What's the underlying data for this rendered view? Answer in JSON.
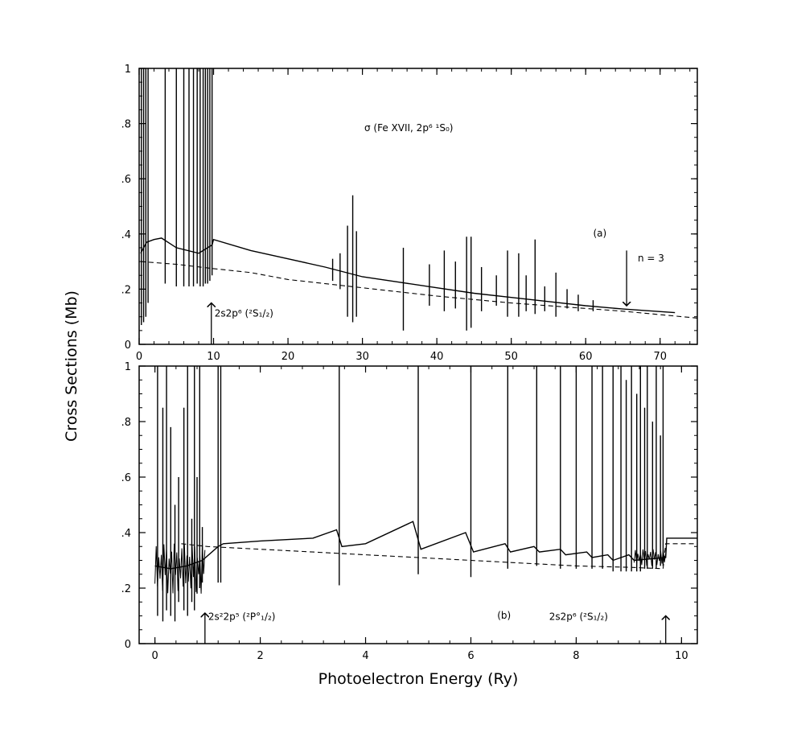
{
  "ylabel": "Cross Sections (Mb)",
  "xlabel": "Photoelectron Energy (Ry)",
  "chart_data": [
    {
      "type": "line",
      "panel": "(a)",
      "title": "σ (Fe XVII, 2p⁶ ¹S₀)",
      "xlim": [
        0,
        75
      ],
      "ylim": [
        0,
        1
      ],
      "x_ticks": [
        "0",
        "10",
        "20",
        "30",
        "40",
        "50",
        "60",
        "70"
      ],
      "y_ticks": [
        "0",
        ".2",
        ".4",
        ".6",
        ".8",
        "1"
      ],
      "series": [
        {
          "style": "solid",
          "x": [
            0.2,
            1,
            2,
            3,
            5,
            8,
            9.8,
            10,
            15,
            20,
            25,
            30,
            35,
            40,
            45,
            50,
            55,
            60,
            65,
            72
          ],
          "y": [
            0.33,
            0.37,
            0.38,
            0.385,
            0.35,
            0.33,
            0.36,
            0.38,
            0.34,
            0.31,
            0.28,
            0.245,
            0.225,
            0.205,
            0.185,
            0.17,
            0.155,
            0.14,
            0.128,
            0.115
          ]
        },
        {
          "style": "dashed",
          "x": [
            0.2,
            5,
            9.8,
            15,
            20,
            30,
            40,
            50,
            60,
            65,
            75
          ],
          "y": [
            0.3,
            0.29,
            0.275,
            0.26,
            0.235,
            0.205,
            0.175,
            0.15,
            0.13,
            0.12,
            0.095
          ]
        }
      ],
      "spikes": [
        {
          "x": 0.3,
          "lo": 0.07,
          "hi": 1.0
        },
        {
          "x": 0.6,
          "lo": 0.08,
          "hi": 1.0
        },
        {
          "x": 0.9,
          "lo": 0.1,
          "hi": 1.0
        },
        {
          "x": 1.2,
          "lo": 0.15,
          "hi": 1.0
        },
        {
          "x": 3.5,
          "lo": 0.22,
          "hi": 1.0
        },
        {
          "x": 5.0,
          "lo": 0.21,
          "hi": 1.0
        },
        {
          "x": 6.0,
          "lo": 0.21,
          "hi": 1.0
        },
        {
          "x": 6.7,
          "lo": 0.21,
          "hi": 1.0
        },
        {
          "x": 7.3,
          "lo": 0.21,
          "hi": 1.0
        },
        {
          "x": 7.8,
          "lo": 0.22,
          "hi": 1.0
        },
        {
          "x": 8.2,
          "lo": 0.21,
          "hi": 1.0
        },
        {
          "x": 8.6,
          "lo": 0.21,
          "hi": 1.0
        },
        {
          "x": 8.9,
          "lo": 0.22,
          "hi": 1.0
        },
        {
          "x": 9.2,
          "lo": 0.22,
          "hi": 1.0
        },
        {
          "x": 9.5,
          "lo": 0.23,
          "hi": 1.0
        },
        {
          "x": 9.8,
          "lo": 0.25,
          "hi": 1.0
        },
        {
          "x": 26,
          "lo": 0.23,
          "hi": 0.31
        },
        {
          "x": 27,
          "lo": 0.2,
          "hi": 0.33
        },
        {
          "x": 28,
          "lo": 0.1,
          "hi": 0.43
        },
        {
          "x": 28.7,
          "lo": 0.08,
          "hi": 0.54
        },
        {
          "x": 29.2,
          "lo": 0.1,
          "hi": 0.41
        },
        {
          "x": 35.5,
          "lo": 0.05,
          "hi": 0.35
        },
        {
          "x": 39,
          "lo": 0.14,
          "hi": 0.29
        },
        {
          "x": 41,
          "lo": 0.12,
          "hi": 0.34
        },
        {
          "x": 42.5,
          "lo": 0.13,
          "hi": 0.3
        },
        {
          "x": 44,
          "lo": 0.05,
          "hi": 0.39
        },
        {
          "x": 44.6,
          "lo": 0.06,
          "hi": 0.39
        },
        {
          "x": 46,
          "lo": 0.12,
          "hi": 0.28
        },
        {
          "x": 48,
          "lo": 0.14,
          "hi": 0.25
        },
        {
          "x": 49.5,
          "lo": 0.1,
          "hi": 0.34
        },
        {
          "x": 51,
          "lo": 0.1,
          "hi": 0.33
        },
        {
          "x": 52,
          "lo": 0.12,
          "hi": 0.25
        },
        {
          "x": 53.2,
          "lo": 0.11,
          "hi": 0.38
        },
        {
          "x": 54.5,
          "lo": 0.12,
          "hi": 0.21
        },
        {
          "x": 56,
          "lo": 0.1,
          "hi": 0.26
        },
        {
          "x": 57.5,
          "lo": 0.13,
          "hi": 0.2
        },
        {
          "x": 59,
          "lo": 0.12,
          "hi": 0.18
        },
        {
          "x": 61,
          "lo": 0.12,
          "hi": 0.16
        }
      ],
      "annotations": [
        {
          "text": "(a)",
          "x": 61,
          "y": 0.39
        },
        {
          "text": "n = 3",
          "x": 67,
          "y": 0.3
        }
      ],
      "arrows": [
        {
          "x": 65.5,
          "from": 0.34,
          "to": 0.14,
          "dir": "down"
        },
        {
          "x": 9.7,
          "from": 0,
          "to": 0.15,
          "dir": "up",
          "label": "2s2p⁶ (²S₁/₂)"
        }
      ]
    },
    {
      "type": "line",
      "panel": "(b)",
      "xlim": [
        -0.3,
        10.3
      ],
      "ylim": [
        0,
        1
      ],
      "x_ticks": [
        "0",
        "2",
        "4",
        "6",
        "8",
        "10"
      ],
      "y_ticks": [
        "0",
        ".2",
        ".4",
        ".6",
        ".8",
        "1"
      ],
      "series": [
        {
          "style": "solid",
          "x": [
            0,
            0.3,
            0.6,
            0.9,
            1.2,
            1.3,
            2,
            3,
            3.45,
            3.55,
            4,
            4.9,
            5.05,
            5.9,
            6.05,
            6.65,
            6.75,
            7.2,
            7.3,
            7.7,
            7.8,
            8.2,
            8.3,
            8.6,
            8.7,
            9.0,
            9.1,
            9.7,
            9.72,
            10.3
          ],
          "y": [
            0.28,
            0.27,
            0.28,
            0.3,
            0.35,
            0.36,
            0.37,
            0.38,
            0.41,
            0.35,
            0.36,
            0.44,
            0.34,
            0.4,
            0.33,
            0.36,
            0.33,
            0.35,
            0.33,
            0.34,
            0.32,
            0.33,
            0.31,
            0.32,
            0.3,
            0.32,
            0.3,
            0.31,
            0.38,
            0.38
          ]
        },
        {
          "style": "dashed",
          "x": [
            0.5,
            1,
            2,
            3,
            4,
            5,
            6,
            7,
            8,
            9,
            9.65,
            9.7,
            10.3
          ],
          "y": [
            0.36,
            0.35,
            0.34,
            0.33,
            0.32,
            0.31,
            0.3,
            0.29,
            0.28,
            0.275,
            0.27,
            0.36,
            0.36
          ]
        }
      ],
      "spikes": [
        {
          "x": 0.05,
          "lo": 0.1,
          "hi": 1.0
        },
        {
          "x": 0.15,
          "lo": 0.08,
          "hi": 0.85
        },
        {
          "x": 0.22,
          "lo": 0.12,
          "hi": 1.0
        },
        {
          "x": 0.3,
          "lo": 0.1,
          "hi": 0.78
        },
        {
          "x": 0.38,
          "lo": 0.08,
          "hi": 0.5
        },
        {
          "x": 0.45,
          "lo": 0.15,
          "hi": 0.6
        },
        {
          "x": 0.55,
          "lo": 0.12,
          "hi": 0.85
        },
        {
          "x": 0.62,
          "lo": 0.1,
          "hi": 1.0
        },
        {
          "x": 0.7,
          "lo": 0.15,
          "hi": 0.45
        },
        {
          "x": 0.75,
          "lo": 0.12,
          "hi": 1.0
        },
        {
          "x": 0.8,
          "lo": 0.18,
          "hi": 0.6
        },
        {
          "x": 0.85,
          "lo": 0.2,
          "hi": 1.0
        },
        {
          "x": 0.9,
          "lo": 0.22,
          "hi": 0.42
        },
        {
          "x": 1.2,
          "lo": 0.22,
          "hi": 1.0
        },
        {
          "x": 1.25,
          "lo": 0.22,
          "hi": 1.0
        },
        {
          "x": 3.5,
          "lo": 0.21,
          "hi": 1.0
        },
        {
          "x": 5.0,
          "lo": 0.25,
          "hi": 1.0
        },
        {
          "x": 6.0,
          "lo": 0.24,
          "hi": 1.0
        },
        {
          "x": 6.7,
          "lo": 0.27,
          "hi": 1.0
        },
        {
          "x": 7.25,
          "lo": 0.28,
          "hi": 1.0
        },
        {
          "x": 7.7,
          "lo": 0.27,
          "hi": 1.0
        },
        {
          "x": 8.0,
          "lo": 0.27,
          "hi": 1.0
        },
        {
          "x": 8.3,
          "lo": 0.27,
          "hi": 1.0
        },
        {
          "x": 8.5,
          "lo": 0.27,
          "hi": 1.0
        },
        {
          "x": 8.7,
          "lo": 0.26,
          "hi": 1.0
        },
        {
          "x": 8.85,
          "lo": 0.26,
          "hi": 1.0
        },
        {
          "x": 8.95,
          "lo": 0.26,
          "hi": 0.95
        },
        {
          "x": 9.05,
          "lo": 0.26,
          "hi": 1.0
        },
        {
          "x": 9.15,
          "lo": 0.26,
          "hi": 0.9
        },
        {
          "x": 9.22,
          "lo": 0.26,
          "hi": 1.0
        },
        {
          "x": 9.3,
          "lo": 0.27,
          "hi": 0.85
        },
        {
          "x": 9.35,
          "lo": 0.27,
          "hi": 1.0
        },
        {
          "x": 9.45,
          "lo": 0.27,
          "hi": 0.8
        },
        {
          "x": 9.52,
          "lo": 0.27,
          "hi": 1.0
        },
        {
          "x": 9.6,
          "lo": 0.28,
          "hi": 0.75
        },
        {
          "x": 9.65,
          "lo": 0.28,
          "hi": 1.0
        }
      ],
      "noise_band": [
        {
          "from": 0.0,
          "to": 0.95,
          "lo": 0.18,
          "hi": 0.36
        },
        {
          "from": 9.1,
          "to": 9.7,
          "lo": 0.28,
          "hi": 0.34
        }
      ],
      "annotations": [
        {
          "text": "(b)",
          "x": 6.5,
          "y": 0.09
        }
      ],
      "arrows": [
        {
          "x": 0.95,
          "from": 0,
          "to": 0.11,
          "dir": "up",
          "label": "2s²2p⁵ (²P°₁/₂)"
        },
        {
          "x": 9.7,
          "from": 0,
          "to": 0.1,
          "dir": "up",
          "label": "2s2p⁶ (²S₁/₂)"
        }
      ]
    }
  ]
}
